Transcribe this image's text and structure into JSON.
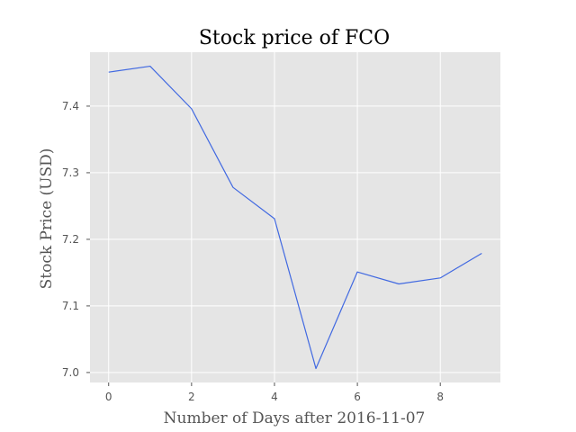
{
  "chart_data": {
    "type": "line",
    "title": "Stock price of FCO",
    "xlabel": "Number of Days after 2016-11-07",
    "ylabel": "Stock Price (USD)",
    "x": [
      0,
      1,
      2,
      3,
      4,
      5,
      6,
      7,
      8,
      9
    ],
    "series": [
      {
        "values": [
          7.451,
          7.46,
          7.396,
          7.278,
          7.231,
          7.006,
          7.151,
          7.133,
          7.142,
          7.179
        ]
      }
    ],
    "xlim": [
      -0.45,
      9.45
    ],
    "ylim": [
      6.985,
      7.481
    ],
    "xticks": [
      0,
      2,
      4,
      6,
      8
    ],
    "xtick_labels": [
      "0",
      "2",
      "4",
      "6",
      "8"
    ],
    "yticks": [
      7.0,
      7.1,
      7.2,
      7.3,
      7.4
    ],
    "ytick_labels": [
      "7.0",
      "7.1",
      "7.2",
      "7.3",
      "7.4"
    ],
    "grid": true,
    "colors": {
      "line": "#4169e1",
      "plot_background": "#e5e5e5",
      "grid": "#ffffff",
      "tick_text": "#555555"
    }
  }
}
